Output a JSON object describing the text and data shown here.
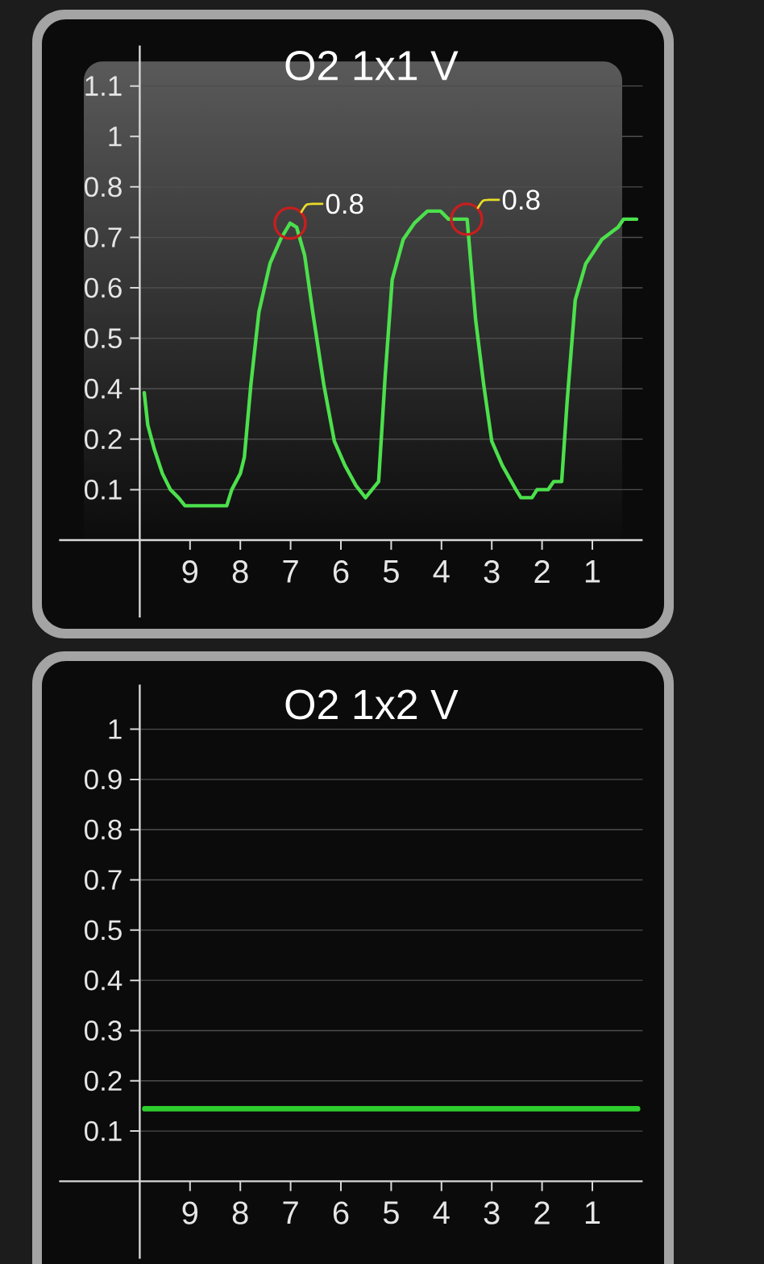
{
  "chart_data": [
    {
      "type": "line",
      "title": "O2 1x1 V",
      "x": [
        9.91,
        9.84,
        9.71,
        9.55,
        9.39,
        9.23,
        9.1,
        8.27,
        8.17,
        8.0,
        7.92,
        7.79,
        7.63,
        7.41,
        7.2,
        7.01,
        6.88,
        6.72,
        6.56,
        6.34,
        6.13,
        5.92,
        5.7,
        5.51,
        5.25,
        5.12,
        4.98,
        4.76,
        4.54,
        4.28,
        4.02,
        3.86,
        3.49,
        3.32,
        3.16,
        3.0,
        2.79,
        2.52,
        2.42,
        2.2,
        2.1,
        1.88,
        1.77,
        1.61,
        1.5,
        1.34,
        1.13,
        0.81,
        0.49,
        0.38,
        0.12
      ],
      "series": [
        {
          "color": "#4ce04c",
          "values": [
            0.34,
            0.26,
            0.2,
            0.14,
            0.1,
            0.08,
            0.06,
            0.06,
            0.1,
            0.14,
            0.18,
            0.36,
            0.54,
            0.66,
            0.72,
            0.76,
            0.75,
            0.68,
            0.54,
            0.36,
            0.22,
            0.16,
            0.11,
            0.08,
            0.12,
            0.38,
            0.62,
            0.72,
            0.76,
            0.79,
            0.79,
            0.77,
            0.77,
            0.52,
            0.36,
            0.22,
            0.16,
            0.1,
            0.08,
            0.08,
            0.1,
            0.1,
            0.12,
            0.12,
            0.32,
            0.57,
            0.66,
            0.72,
            0.75,
            0.77,
            0.77
          ]
        }
      ],
      "xlim": [
        10,
        0
      ],
      "xticks": [
        9,
        8,
        7,
        6,
        5,
        4,
        3,
        2,
        1
      ],
      "ylim": [
        -0.025,
        1.2
      ],
      "yticks": [
        0.1,
        {
          "value": 0.225,
          "label": "0.2"
        },
        {
          "value": 0.35,
          "label": "0.4"
        },
        {
          "value": 0.475,
          "label": "0.5"
        },
        0.6,
        {
          "value": 0.725,
          "label": "0.7"
        },
        {
          "value": 0.85,
          "label": "0.8"
        },
        {
          "value": 0.975,
          "label": "1"
        },
        1.1
      ],
      "grid": "y",
      "annotations": [
        {
          "text": "0.8",
          "x": 7.01,
          "y": 0.76
        },
        {
          "text": "0.8",
          "x": 3.5,
          "y": 0.77
        }
      ]
    },
    {
      "type": "line",
      "title": "O2 1x2 V",
      "x": [
        9.9,
        0.1
      ],
      "series": [
        {
          "color": "#2ecc2e",
          "values": [
            0.15,
            0.15
          ]
        }
      ],
      "xlim": [
        10,
        0
      ],
      "xticks": [
        9,
        8,
        7,
        6,
        5,
        4,
        3,
        2,
        1
      ],
      "ylim": [
        -0.0125,
        1.1
      ],
      "yticks": [
        0.1,
        {
          "value": 0.2125,
          "label": "0.2"
        },
        {
          "value": 0.325,
          "label": "0.3"
        },
        {
          "value": 0.4375,
          "label": "0.4"
        },
        {
          "value": 0.55,
          "label": "0.5"
        },
        {
          "value": 0.6625,
          "label": "0.7"
        },
        {
          "value": 0.775,
          "label": "0.8"
        },
        {
          "value": 0.8875,
          "label": "0.9"
        },
        1
      ],
      "grid": "y"
    }
  ]
}
